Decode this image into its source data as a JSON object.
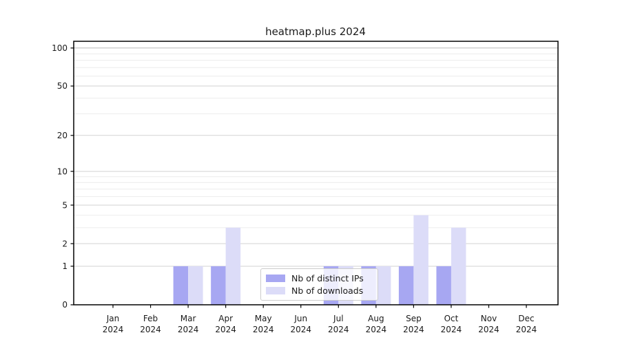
{
  "figure": {
    "background": "#ffffff",
    "text_color": "#1a1a1a"
  },
  "chart_data": {
    "type": "bar",
    "title": "heatmap.plus 2024",
    "categories": [
      {
        "month": "Jan",
        "year": "2024"
      },
      {
        "month": "Feb",
        "year": "2024"
      },
      {
        "month": "Mar",
        "year": "2024"
      },
      {
        "month": "Apr",
        "year": "2024"
      },
      {
        "month": "May",
        "year": "2024"
      },
      {
        "month": "Jun",
        "year": "2024"
      },
      {
        "month": "Jul",
        "year": "2024"
      },
      {
        "month": "Aug",
        "year": "2024"
      },
      {
        "month": "Sep",
        "year": "2024"
      },
      {
        "month": "Oct",
        "year": "2024"
      },
      {
        "month": "Nov",
        "year": "2024"
      },
      {
        "month": "Dec",
        "year": "2024"
      }
    ],
    "series": [
      {
        "name": "Nb of distinct IPs",
        "color": "#a7a7f2",
        "values": [
          0,
          0,
          1,
          1,
          0,
          0,
          1,
          1,
          1,
          1,
          0,
          0
        ]
      },
      {
        "name": "Nb of downloads",
        "color": "#dcdcf8",
        "values": [
          0,
          0,
          1,
          3,
          0,
          0,
          1,
          1,
          4,
          3,
          0,
          0
        ]
      }
    ],
    "y_axis": {
      "scale": "log1p",
      "ticks_major": [
        0,
        1,
        2,
        5,
        10,
        20,
        50,
        100
      ],
      "ticks_minor": [
        3,
        4,
        6,
        7,
        8,
        9,
        30,
        40,
        60,
        70,
        80,
        90
      ],
      "ylim": [
        0,
        113
      ]
    },
    "grid": {
      "major_color": "#d2d2d2",
      "minor_color": "#ececec",
      "top_line_color": "#b8b8b8"
    },
    "legend": {
      "position": "inside-bottom-center",
      "entries": [
        "Nb of distinct IPs",
        "Nb of downloads"
      ]
    }
  }
}
